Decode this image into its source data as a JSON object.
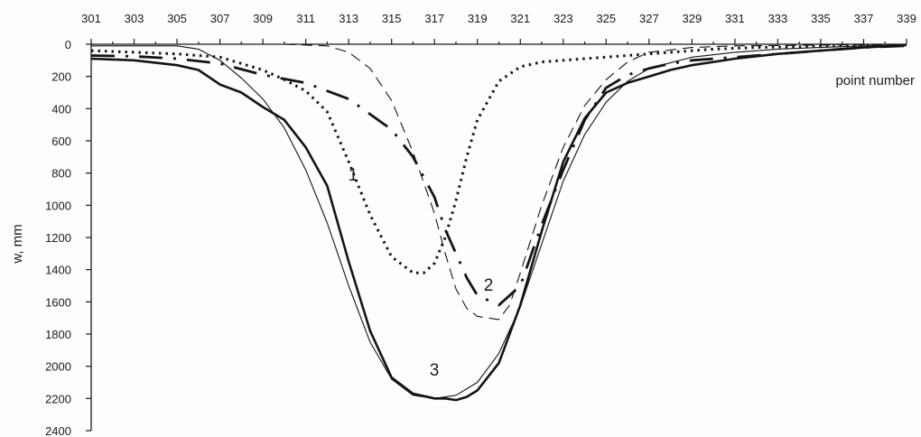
{
  "chart_data": {
    "type": "line",
    "xlabel": "point number",
    "ylabel": "w, mm",
    "xlim": [
      301,
      339
    ],
    "ylim": [
      0,
      2400
    ],
    "y_inverted": true,
    "x_axis_position": "top",
    "x_ticks": [
      "301",
      "303",
      "305",
      "307",
      "309",
      "311",
      "313",
      "315",
      "317",
      "319",
      "321",
      "323",
      "325",
      "327",
      "329",
      "331",
      "333",
      "335",
      "337",
      "339"
    ],
    "y_ticks": [
      "0",
      "200",
      "400",
      "600",
      "800",
      "1000",
      "1200",
      "1400",
      "1600",
      "1800",
      "2000",
      "2200",
      "2400"
    ],
    "grid": false,
    "legend": "none",
    "series": [
      {
        "curve_label": "1",
        "style": "dotted",
        "x": [
          301,
          303,
          305,
          307,
          309,
          310,
          311,
          312,
          313,
          314,
          315,
          316,
          316.5,
          317,
          317.5,
          318,
          318.5,
          319,
          320,
          321,
          322,
          324,
          326,
          328,
          330,
          332,
          334,
          336,
          339
        ],
        "y": [
          40,
          50,
          60,
          80,
          160,
          220,
          290,
          420,
          730,
          1060,
          1320,
          1420,
          1420,
          1360,
          1200,
          970,
          700,
          470,
          230,
          140,
          110,
          90,
          70,
          50,
          30,
          20,
          15,
          10,
          5
        ]
      },
      {
        "curve_label": "2",
        "style": "dashed",
        "x": [
          310,
          312,
          313,
          314,
          315,
          316,
          317,
          317.5,
          318,
          318.5,
          319,
          319.5,
          320,
          320.5,
          321,
          322,
          323,
          324,
          325,
          326,
          327,
          329,
          331,
          333,
          335,
          337,
          339
        ],
        "y": [
          0,
          10,
          50,
          150,
          350,
          670,
          1050,
          1300,
          1520,
          1640,
          1690,
          1700,
          1710,
          1620,
          1420,
          1000,
          640,
          380,
          220,
          110,
          50,
          20,
          10,
          8,
          5,
          3,
          2
        ]
      },
      {
        "curve_label": "",
        "style": "long-dash",
        "x": [
          301,
          303,
          305,
          307,
          309,
          311,
          313,
          315,
          316,
          317,
          317.5,
          318,
          318.5,
          319,
          320,
          321,
          322,
          323,
          324,
          325,
          326,
          327,
          328,
          329,
          331,
          333,
          335,
          337,
          339
        ],
        "y": [
          70,
          75,
          90,
          120,
          190,
          240,
          340,
          530,
          700,
          950,
          1150,
          1300,
          1450,
          1560,
          1620,
          1500,
          1120,
          780,
          470,
          270,
          190,
          150,
          120,
          100,
          80,
          60,
          40,
          20,
          10
        ]
      },
      {
        "curve_label": "3",
        "style": "thick-solid",
        "x": [
          301,
          303,
          305,
          306,
          307,
          308,
          309,
          310,
          311,
          312,
          313,
          314,
          315,
          316,
          317,
          317.5,
          318,
          318.5,
          319,
          320,
          321,
          322,
          323,
          324,
          325,
          326,
          327,
          328,
          329,
          331,
          333,
          335,
          337,
          339
        ],
        "y": [
          90,
          100,
          130,
          160,
          250,
          300,
          390,
          470,
          640,
          880,
          1350,
          1780,
          2070,
          2170,
          2200,
          2200,
          2210,
          2190,
          2150,
          1980,
          1620,
          1160,
          730,
          460,
          300,
          240,
          200,
          160,
          130,
          90,
          60,
          40,
          20,
          5
        ]
      },
      {
        "curve_label": "",
        "style": "thin-solid",
        "x": [
          301,
          303,
          305,
          306,
          307,
          308,
          309,
          310,
          311,
          312,
          313,
          314,
          315,
          316,
          317,
          318,
          319,
          320,
          321,
          322,
          323,
          324,
          325,
          326,
          327,
          329,
          331,
          333,
          335,
          337,
          339
        ],
        "y": [
          10,
          10,
          10,
          30,
          100,
          210,
          340,
          520,
          780,
          1110,
          1500,
          1850,
          2080,
          2180,
          2200,
          2180,
          2100,
          1920,
          1630,
          1240,
          850,
          560,
          360,
          230,
          150,
          80,
          50,
          30,
          20,
          10,
          5
        ]
      }
    ]
  }
}
